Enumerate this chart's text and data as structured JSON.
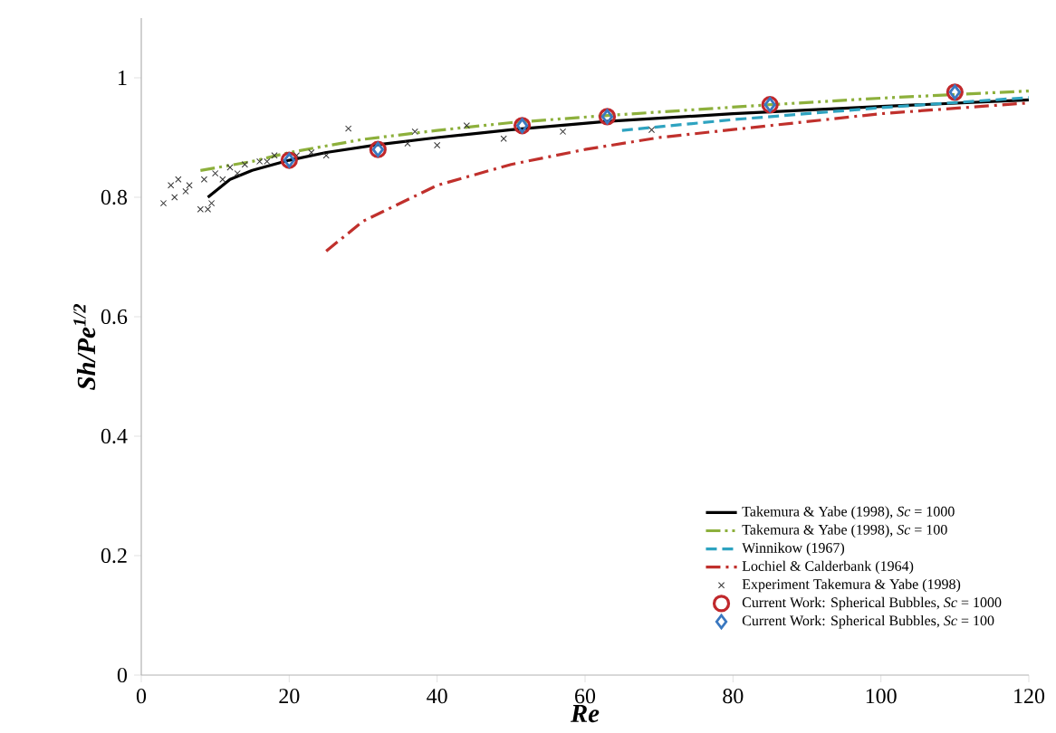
{
  "chart_data": {
    "type": "line",
    "xlabel": "Re",
    "ylabel": "Sh/Pe$^{1/2}$",
    "xlim": [
      0,
      120
    ],
    "ylim": [
      0,
      1.1
    ],
    "xticks": [
      0,
      20,
      40,
      60,
      80,
      100,
      120
    ],
    "yticks": [
      0,
      {
        "value": 0.2,
        "label": "0.2"
      },
      {
        "value": 0.4,
        "label": "0.4"
      },
      {
        "value": 0.6,
        "label": "0.6"
      },
      {
        "value": 0.8,
        "label": "0.8"
      },
      1
    ],
    "grid": false,
    "legend": "bottom right",
    "series": [
      {
        "name": "Takemura & Yabe (1998), *Sc* = 1000",
        "color": "#000000",
        "line_style": "solid",
        "marker": "none",
        "x": [
          9,
          12,
          15,
          20,
          25,
          32,
          40,
          50,
          63,
          80,
          100,
          120
        ],
        "values": [
          0.8,
          0.83,
          0.845,
          0.862,
          0.875,
          0.888,
          0.9,
          0.913,
          0.927,
          0.94,
          0.952,
          0.963
        ]
      },
      {
        "name": "Takemura & Yabe (1998), *Sc* = 100",
        "color": "#8db03c",
        "line_style": "dashdotdot",
        "marker": "none",
        "x": [
          8,
          15,
          20,
          30,
          40,
          50,
          63,
          85,
          100,
          120
        ],
        "values": [
          0.845,
          0.86,
          0.875,
          0.897,
          0.912,
          0.925,
          0.937,
          0.955,
          0.966,
          0.978
        ]
      },
      {
        "name": "Winnikow (1967)",
        "color": "#2ea3c0",
        "line_style": "dashed",
        "marker": "none",
        "x": [
          65,
          80,
          100,
          120
        ],
        "values": [
          0.912,
          0.93,
          0.95,
          0.967
        ]
      },
      {
        "name": "Lochiel & Calderbank (1964)",
        "color": "#c0302c",
        "line_style": "dashdot",
        "marker": "none",
        "x": [
          25,
          30,
          40,
          50,
          60,
          70,
          85,
          100,
          120
        ],
        "values": [
          0.71,
          0.76,
          0.82,
          0.855,
          0.88,
          0.9,
          0.92,
          0.94,
          0.958
        ]
      },
      {
        "type": "scatter",
        "name": "Experiment Takemura & Yabe (1998)",
        "color": "#333333",
        "marker": "cross",
        "x": [
          3,
          4,
          4.5,
          5,
          6,
          6.5,
          8,
          8.5,
          9,
          9.5,
          10,
          11,
          12,
          13,
          14,
          16,
          17,
          18,
          21,
          23,
          25,
          28,
          36,
          37,
          40,
          44,
          49,
          57,
          69
        ],
        "values": [
          0.79,
          0.82,
          0.8,
          0.83,
          0.81,
          0.82,
          0.78,
          0.83,
          0.78,
          0.79,
          0.84,
          0.83,
          0.85,
          0.84,
          0.855,
          0.86,
          0.86,
          0.87,
          0.87,
          0.875,
          0.87,
          0.915,
          0.89,
          0.91,
          0.887,
          0.92,
          0.898,
          0.91,
          0.913
        ]
      },
      {
        "type": "scatter",
        "name": "Current Work: Spherical Bubbles, *Sc* = 1000",
        "color": "#c0282c",
        "marker": "circle",
        "x": [
          20,
          32,
          51.5,
          63,
          85,
          110
        ],
        "values": [
          0.862,
          0.88,
          0.92,
          0.935,
          0.955,
          0.976
        ]
      },
      {
        "type": "scatter",
        "name": "Current Work: Spherical Bubbles, *Sc* = 100",
        "color": "#3a78c0",
        "marker": "diamond",
        "x": [
          20,
          32,
          51.5,
          63,
          85,
          110
        ],
        "values": [
          0.862,
          0.88,
          0.92,
          0.935,
          0.955,
          0.976
        ]
      }
    ]
  }
}
